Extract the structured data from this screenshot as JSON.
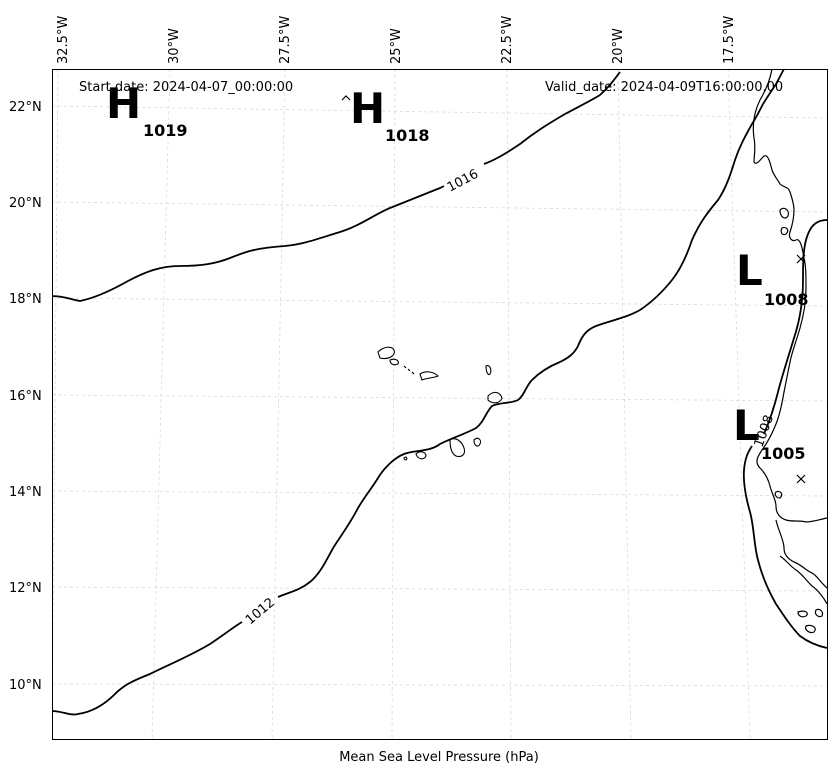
{
  "map": {
    "start_date": "Start date: 2024-04-07_00:00:00",
    "valid_date": "Valid_date: 2024-04-09T16:00:00.00",
    "xlabel": "Mean Sea Level Pressure (hPa)",
    "longitude_labels": [
      "32.5°W",
      "30°W",
      "27.5°W",
      "25°W",
      "22.5°W",
      "20°W",
      "17.5°W"
    ],
    "latitude_labels": [
      "22°N",
      "20°N",
      "18°N",
      "16°N",
      "14°N",
      "12°N",
      "10°N"
    ],
    "pressure_centers": [
      {
        "type": "H",
        "value": "1019"
      },
      {
        "type": "H",
        "value": "1018"
      },
      {
        "type": "L",
        "value": "1008"
      },
      {
        "type": "L",
        "value": "1005"
      }
    ],
    "isobar_labels": [
      "1016",
      "1012",
      "1008"
    ]
  }
}
